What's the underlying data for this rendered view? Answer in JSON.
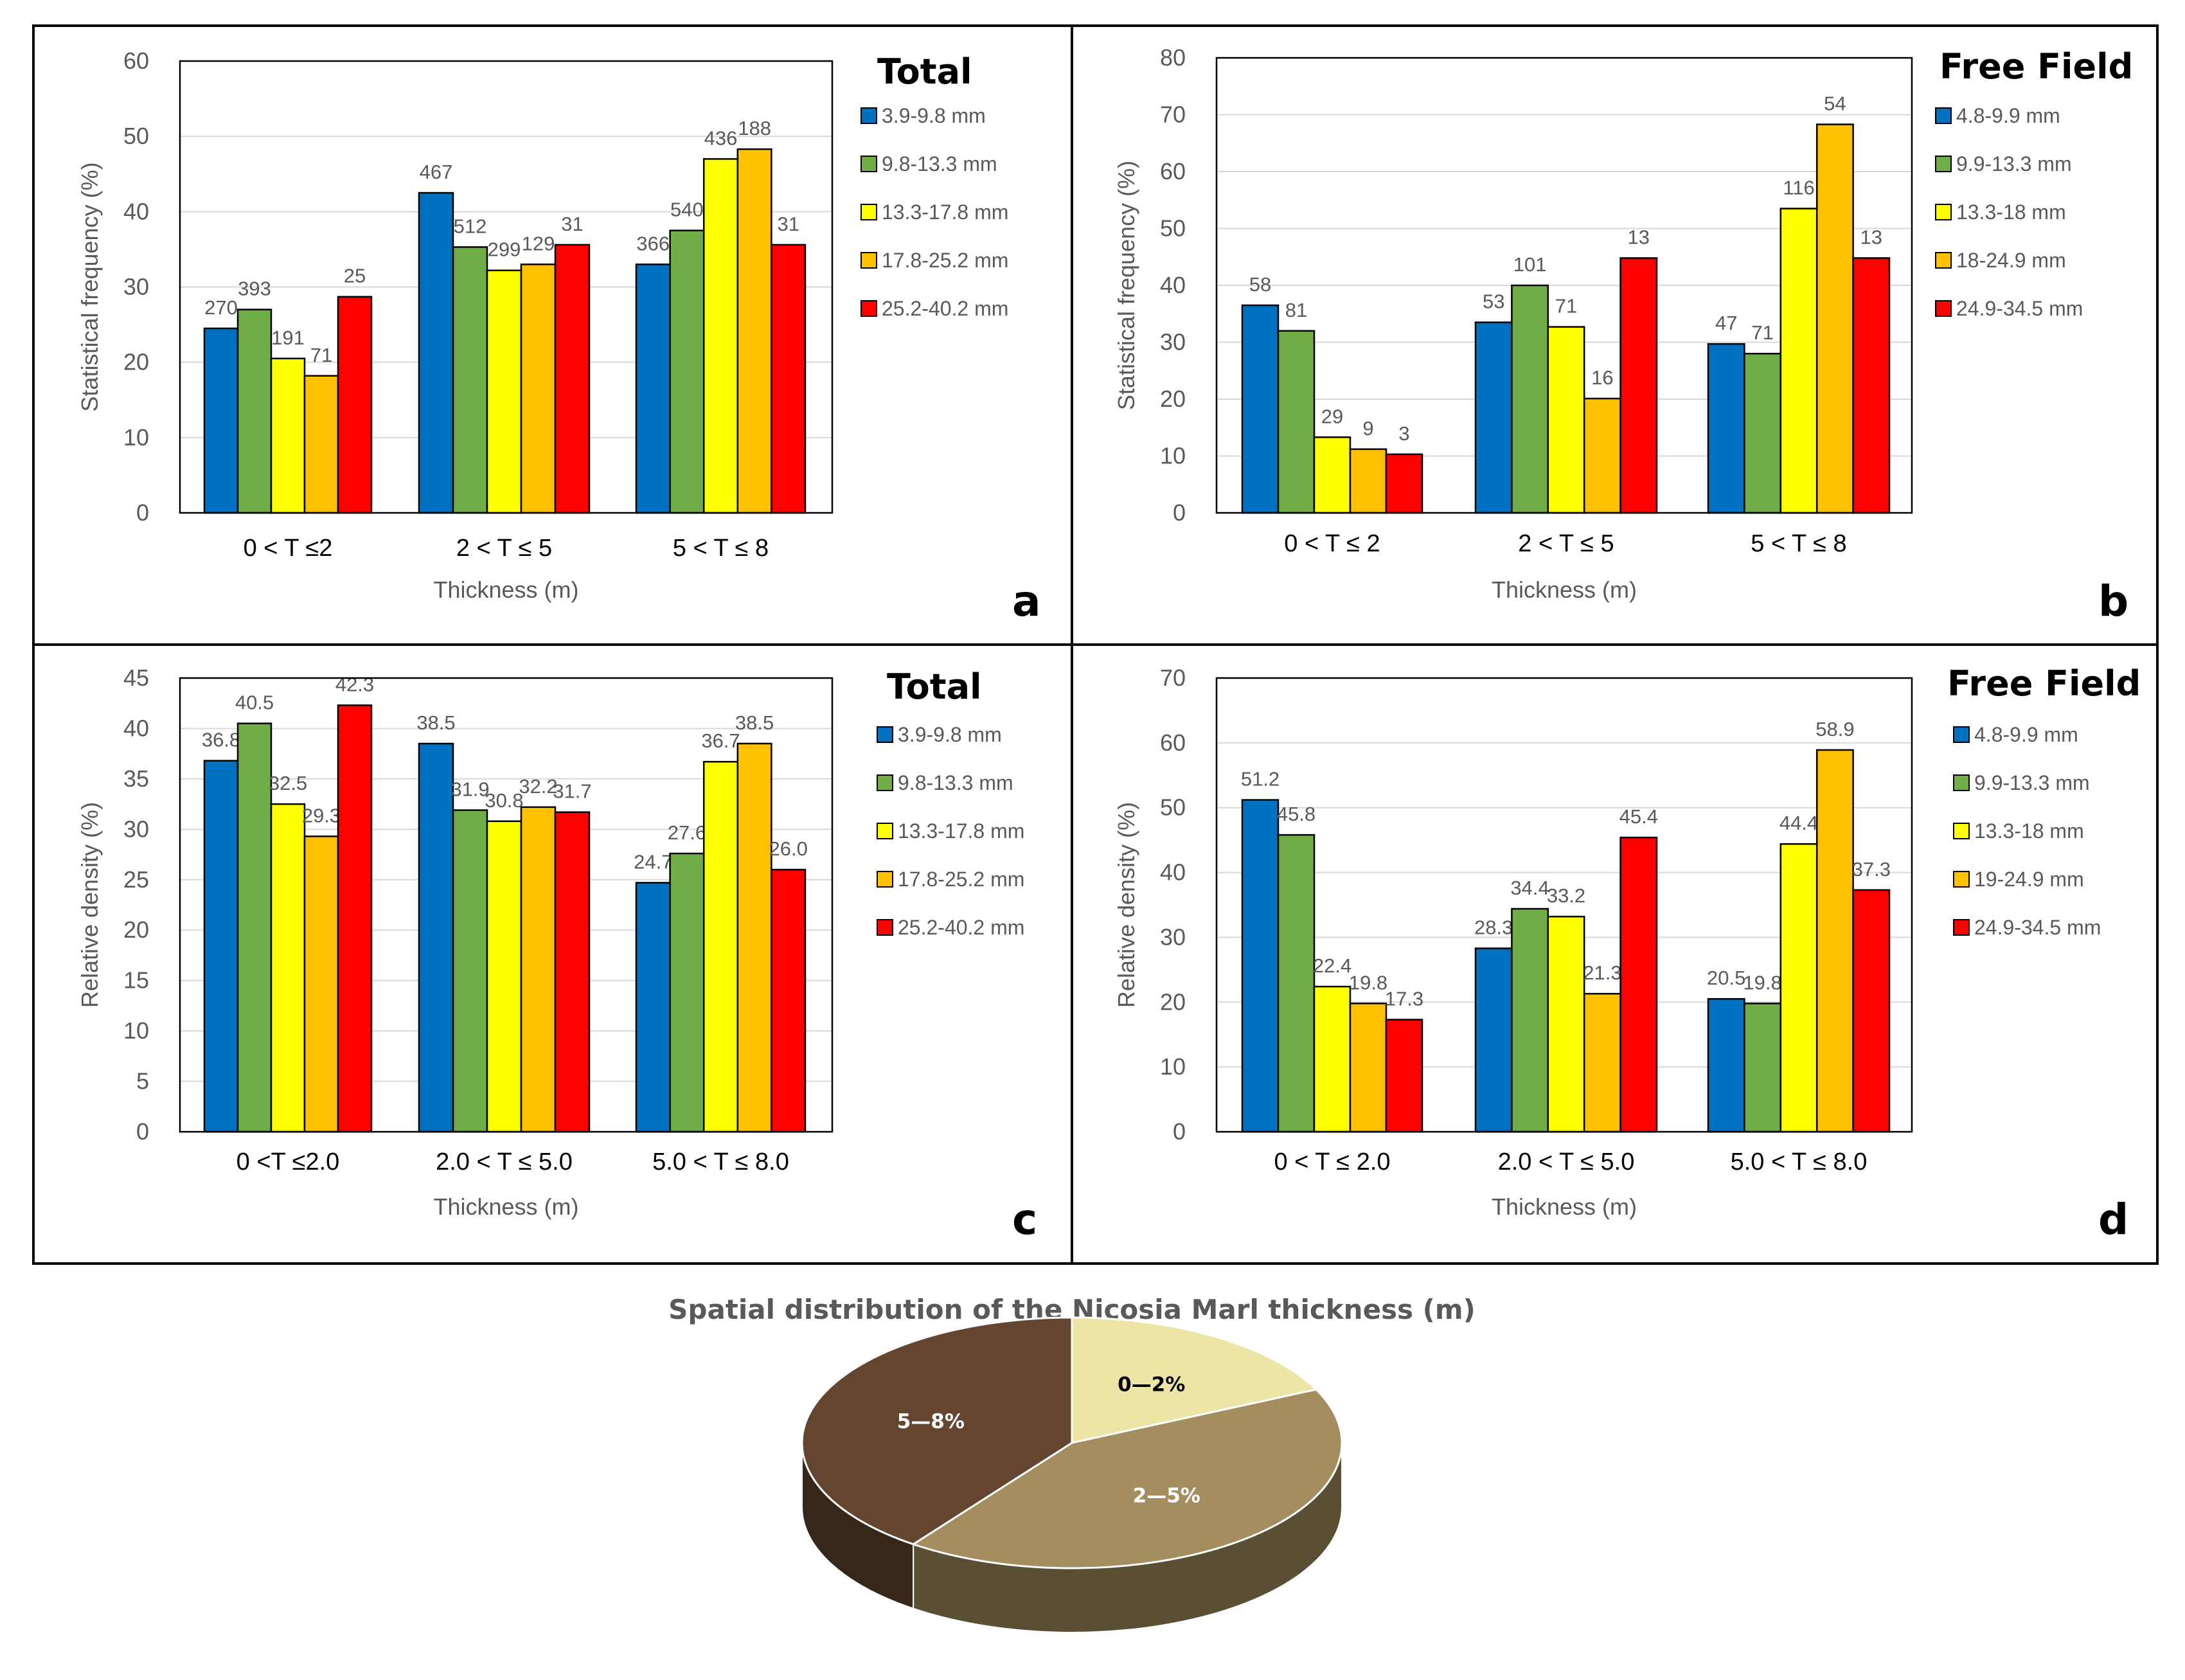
{
  "chart_data": [
    {
      "id": "a",
      "type": "bar",
      "panel_letter": "a",
      "title": "Total",
      "ylabel": "Statistical frequency (%)",
      "xlabel": "Thickness (m)",
      "ylim": [
        0,
        60
      ],
      "yticks": [
        0,
        10,
        20,
        30,
        40,
        50,
        60
      ],
      "categories": [
        "0 < T ≤2",
        "2 < T ≤ 5",
        "5 < T ≤ 8"
      ],
      "series": [
        {
          "name": "3.9-9.8 mm",
          "color": "#0070C0",
          "values": [
            24.5,
            42.5,
            33
          ],
          "labels": [
            "270",
            "467",
            "366"
          ]
        },
        {
          "name": "9.8-13.3 mm",
          "color": "#70AD47",
          "values": [
            27,
            35.3,
            37.5
          ],
          "labels": [
            "393",
            "512",
            "540"
          ]
        },
        {
          "name": "13.3-17.8 mm",
          "color": "#FFFF00",
          "values": [
            20.5,
            32.2,
            47
          ],
          "labels": [
            "191",
            "299",
            "436"
          ]
        },
        {
          "name": "17.8-25.2 mm",
          "color": "#FFC000",
          "values": [
            18.2,
            33,
            48.3
          ],
          "labels": [
            "71",
            "129",
            "188"
          ]
        },
        {
          "name": "25.2-40.2 mm",
          "color": "#FF0000",
          "values": [
            28.7,
            35.6,
            35.6
          ],
          "labels": [
            "25",
            "31",
            "31"
          ]
        }
      ]
    },
    {
      "id": "b",
      "type": "bar",
      "panel_letter": "b",
      "title": "Free Field",
      "ylabel": "Statistical frequency (%)",
      "xlabel": "Thickness (m)",
      "ylim": [
        0,
        80
      ],
      "yticks": [
        0,
        10,
        20,
        30,
        40,
        50,
        60,
        70,
        80
      ],
      "categories": [
        "0 < T ≤ 2",
        "2 < T ≤ 5",
        "5 < T ≤ 8"
      ],
      "series": [
        {
          "name": "4.8-9.9 mm",
          "color": "#0070C0",
          "values": [
            36.5,
            33.5,
            29.7
          ],
          "labels": [
            "58",
            "53",
            "47"
          ]
        },
        {
          "name": "9.9-13.3 mm",
          "color": "#70AD47",
          "values": [
            32,
            40,
            28
          ],
          "labels": [
            "81",
            "101",
            "71"
          ]
        },
        {
          "name": "13.3-18 mm",
          "color": "#FFFF00",
          "values": [
            13.3,
            32.7,
            53.5
          ],
          "labels": [
            "29",
            "71",
            "116"
          ]
        },
        {
          "name": "18-24.9 mm",
          "color": "#FFC000",
          "values": [
            11.2,
            20.1,
            68.3
          ],
          "labels": [
            "9",
            "16",
            "54"
          ]
        },
        {
          "name": "24.9-34.5 mm",
          "color": "#FF0000",
          "values": [
            10.3,
            44.8,
            44.8
          ],
          "labels": [
            "3",
            "13",
            "13"
          ]
        }
      ]
    },
    {
      "id": "c",
      "type": "bar",
      "panel_letter": "c",
      "title": "Total",
      "ylabel": "Relative density (%)",
      "xlabel": "Thickness (m)",
      "ylim": [
        0,
        45
      ],
      "yticks": [
        0,
        5,
        10,
        15,
        20,
        25,
        30,
        35,
        40,
        45
      ],
      "categories": [
        "0 <T ≤2.0",
        "2.0 < T ≤ 5.0",
        "5.0 < T  ≤ 8.0"
      ],
      "series": [
        {
          "name": "3.9-9.8 mm",
          "color": "#0070C0",
          "values": [
            36.8,
            38.5,
            24.7
          ],
          "labels": [
            "36.8",
            "38.5",
            "24.7"
          ]
        },
        {
          "name": "9.8-13.3 mm",
          "color": "#70AD47",
          "values": [
            40.5,
            31.9,
            27.6
          ],
          "labels": [
            "40.5",
            "31.9",
            "27.6"
          ]
        },
        {
          "name": "13.3-17.8 mm",
          "color": "#FFFF00",
          "values": [
            32.5,
            30.8,
            36.7
          ],
          "labels": [
            "32.5",
            "30.8",
            "36.7"
          ]
        },
        {
          "name": "17.8-25.2 mm",
          "color": "#FFC000",
          "values": [
            29.3,
            32.2,
            38.5
          ],
          "labels": [
            "29.3",
            "32.2",
            "38.5"
          ]
        },
        {
          "name": "25.2-40.2 mm",
          "color": "#FF0000",
          "values": [
            42.3,
            31.7,
            26.0
          ],
          "labels": [
            "42.3",
            "31.7",
            "26.0"
          ]
        }
      ]
    },
    {
      "id": "d",
      "type": "bar",
      "panel_letter": "d",
      "title": "Free Field",
      "ylabel": "Relative density (%)",
      "xlabel": "Thickness (m)",
      "ylim": [
        0,
        70
      ],
      "yticks": [
        0,
        10,
        20,
        30,
        40,
        50,
        60,
        70
      ],
      "categories": [
        "0 < T ≤ 2.0",
        "2.0 < T ≤ 5.0",
        "5.0 < T ≤ 8.0"
      ],
      "series": [
        {
          "name": "4.8-9.9 mm",
          "color": "#0070C0",
          "values": [
            51.2,
            28.3,
            20.5
          ],
          "labels": [
            "51.2",
            "28.3",
            "20.5"
          ]
        },
        {
          "name": "9.9-13.3 mm",
          "color": "#70AD47",
          "values": [
            45.8,
            34.4,
            19.8
          ],
          "labels": [
            "45.8",
            "34.4",
            "19.8"
          ]
        },
        {
          "name": "13.3-18 mm",
          "color": "#FFFF00",
          "values": [
            22.4,
            33.2,
            44.4
          ],
          "labels": [
            "22.4",
            "33.2",
            "44.4"
          ]
        },
        {
          "name": "19-24.9 mm",
          "color": "#FFC000",
          "values": [
            19.8,
            21.3,
            58.9
          ],
          "labels": [
            "19.8",
            "21.3",
            "58.9"
          ]
        },
        {
          "name": "24.9-34.5 mm",
          "color": "#FF0000",
          "values": [
            17.3,
            45.4,
            37.3
          ],
          "labels": [
            "17.3",
            "45.4",
            "37.3"
          ]
        }
      ]
    },
    {
      "id": "pie",
      "type": "pie",
      "title": "Spatial distribution of the Nicosia Marl thickness (m)",
      "slices": [
        {
          "label": "0—2%",
          "value": 18,
          "color": "#EDE5A6",
          "text_color": "#000000"
        },
        {
          "label": "2—5%",
          "value": 42,
          "color": "#A48E60",
          "text_color": "#ffffff"
        },
        {
          "label": "5—8%",
          "value": 40,
          "color": "#644530",
          "text_color": "#ffffff"
        }
      ]
    }
  ]
}
